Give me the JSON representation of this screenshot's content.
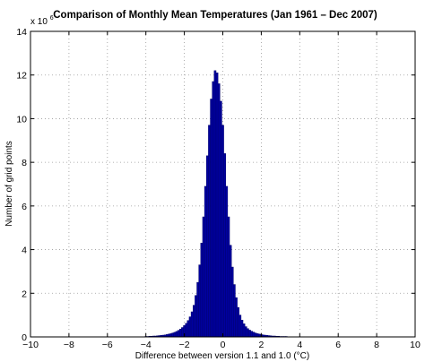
{
  "chart_data": {
    "type": "bar",
    "title": "Comparison of Monthly Mean Temperatures (Jan 1961 –  Dec 2007)",
    "xlabel": "Difference between version 1.1 and 1.0 (°C)",
    "ylabel": "Number of grid points",
    "y_multiplier_label": "x 10",
    "y_multiplier_exponent": "6",
    "xlim": [
      -10,
      10
    ],
    "ylim": [
      0,
      14
    ],
    "xticks": [
      "−10",
      "−8",
      "−6",
      "−4",
      "−2",
      "0",
      "2",
      "4",
      "6",
      "8",
      "10"
    ],
    "yticks": [
      "0",
      "2",
      "4",
      "6",
      "8",
      "10",
      "12",
      "14"
    ],
    "grid": true,
    "bar_color": "#0000a0",
    "bin_width": 0.1,
    "series": [
      {
        "x": [
          -4.0,
          -3.9,
          -3.8,
          -3.7,
          -3.6,
          -3.5,
          -3.4,
          -3.3,
          -3.2,
          -3.1,
          -3.0,
          -2.9,
          -2.8,
          -2.7,
          -2.6,
          -2.5,
          -2.4,
          -2.3,
          -2.2,
          -2.1,
          -2.0,
          -1.9,
          -1.8,
          -1.7,
          -1.6,
          -1.5,
          -1.4,
          -1.3,
          -1.2,
          -1.1,
          -1.0,
          -0.9,
          -0.8,
          -0.7,
          -0.6,
          -0.5,
          -0.4,
          -0.3,
          -0.2,
          -0.1,
          0.0,
          0.1,
          0.2,
          0.3,
          0.4,
          0.5,
          0.6,
          0.7,
          0.8,
          0.9,
          1.0,
          1.1,
          1.2,
          1.3,
          1.4,
          1.5,
          1.6,
          1.7,
          1.8,
          1.9,
          2.0,
          2.1,
          2.2,
          2.3,
          2.4,
          2.5,
          2.6,
          2.7,
          2.8,
          2.9,
          3.0,
          3.1,
          3.2,
          3.3,
          3.4,
          3.5,
          3.6,
          3.7,
          3.8,
          3.9,
          4.0
        ],
        "values": [
          0.02,
          0.02,
          0.03,
          0.03,
          0.04,
          0.04,
          0.05,
          0.06,
          0.07,
          0.08,
          0.09,
          0.11,
          0.13,
          0.15,
          0.18,
          0.21,
          0.25,
          0.3,
          0.36,
          0.43,
          0.52,
          0.62,
          0.75,
          0.92,
          1.15,
          1.45,
          1.9,
          2.5,
          3.3,
          4.3,
          5.5,
          6.9,
          8.3,
          9.7,
          10.9,
          11.7,
          12.2,
          12.1,
          11.6,
          10.8,
          9.7,
          8.4,
          6.9,
          5.5,
          4.2,
          3.2,
          2.4,
          1.8,
          1.35,
          1.0,
          0.77,
          0.6,
          0.47,
          0.38,
          0.31,
          0.26,
          0.22,
          0.18,
          0.15,
          0.13,
          0.11,
          0.09,
          0.08,
          0.07,
          0.06,
          0.05,
          0.04,
          0.04,
          0.03,
          0.03,
          0.02,
          0.02,
          0.02,
          0.02,
          0.01,
          0.01,
          0.01,
          0.01,
          0.01,
          0.01,
          0.01
        ]
      }
    ]
  }
}
